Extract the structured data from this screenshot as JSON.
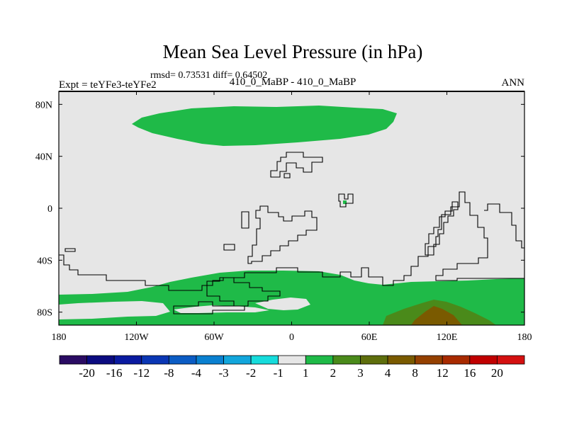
{
  "chart_data": {
    "type": "heatmap",
    "title": "Mean Sea Level Pressure (in hPa)",
    "stats_line": "rmsd= 0.73531 diff= 0.64502",
    "left_label": "Expt = teYFe3-teYFe2",
    "center_label": "410_0_MaBP - 410_0_MaBP",
    "right_label": "ANN",
    "x_axis": {
      "range": [
        -180,
        180
      ],
      "ticks": [
        {
          "value": -180,
          "label": "180"
        },
        {
          "value": -120,
          "label": "120W"
        },
        {
          "value": -60,
          "label": "60W"
        },
        {
          "value": 0,
          "label": "0"
        },
        {
          "value": 60,
          "label": "60E"
        },
        {
          "value": 120,
          "label": "120E"
        },
        {
          "value": 180,
          "label": "180"
        }
      ]
    },
    "y_axis": {
      "range": [
        -90,
        90
      ],
      "ticks": [
        {
          "value": 80,
          "label": "80N"
        },
        {
          "value": 40,
          "label": "40N"
        },
        {
          "value": 0,
          "label": "0"
        },
        {
          "value": -40,
          "label": "40S"
        },
        {
          "value": -80,
          "label": "80S"
        }
      ]
    },
    "colorbar": {
      "labels": [
        "-20",
        "-16",
        "-12",
        "-8",
        "-4",
        "-3",
        "-2",
        "-1",
        "1",
        "2",
        "3",
        "4",
        "8",
        "12",
        "16",
        "20"
      ],
      "colors": [
        "#2a0b63",
        "#0b0b80",
        "#0a1aa0",
        "#0a36b4",
        "#0b5cc4",
        "#0a80d0",
        "#12a6dc",
        "#16dcdc",
        "#e6e6e6",
        "#1fba48",
        "#4a8a1a",
        "#5e6e0c",
        "#7a5a00",
        "#944000",
        "#a82a00",
        "#c00000",
        "#d41010"
      ]
    },
    "fields": {
      "background_bin": "-1 to 1",
      "regions": [
        {
          "name": "northern-band",
          "bin": "1 to 2",
          "lon": [
            -100,
            35
          ],
          "lat": [
            52,
            74
          ]
        },
        {
          "name": "southern-band",
          "bin": "1 to 2",
          "lon": [
            -180,
            180
          ],
          "lat": [
            -90,
            -60
          ]
        },
        {
          "name": "antarctic-peak",
          "bin": "3 to 4",
          "lon": [
            70,
            150
          ],
          "lat": [
            -90,
            -73
          ]
        },
        {
          "name": "small-spot",
          "bin": "1 to 2",
          "lon": [
            40,
            44
          ],
          "lat": [
            -3,
            2
          ]
        }
      ]
    }
  }
}
